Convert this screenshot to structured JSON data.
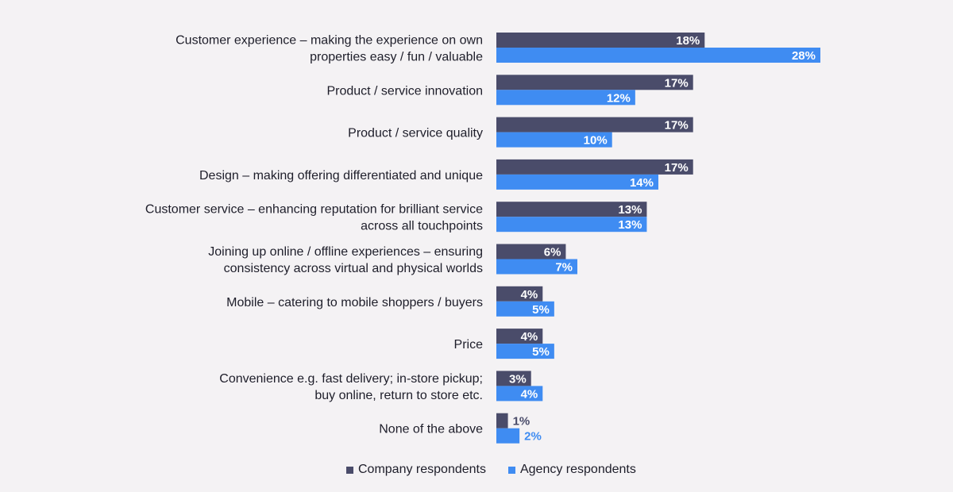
{
  "chart_data": {
    "type": "bar",
    "orientation": "horizontal",
    "categories": [
      [
        "Customer experience – making the experience on own",
        "properties easy / fun / valuable"
      ],
      [
        "Product / service innovation"
      ],
      [
        "Product / service quality"
      ],
      [
        "Design – making offering differentiated and unique"
      ],
      [
        "Customer service – enhancing reputation for brilliant service",
        "across all touchpoints"
      ],
      [
        "Joining up online / offline experiences – ensuring",
        "consistency across virtual and physical worlds"
      ],
      [
        "Mobile – catering to mobile shoppers / buyers"
      ],
      [
        "Price"
      ],
      [
        "Convenience e.g. fast delivery; in-store pickup;",
        "buy online, return to store etc."
      ],
      [
        "None of the above"
      ]
    ],
    "series": [
      {
        "name": "Company respondents",
        "color": "#4a4c6a",
        "values": [
          18,
          17,
          17,
          17,
          13,
          6,
          4,
          4,
          3,
          1
        ]
      },
      {
        "name": "Agency respondents",
        "color": "#3f8cf2",
        "values": [
          28,
          12,
          10,
          14,
          13,
          7,
          5,
          5,
          4,
          2
        ]
      }
    ],
    "value_format": "percent",
    "xlim": [
      0,
      30
    ],
    "grid": false,
    "legend_position": "bottom"
  }
}
